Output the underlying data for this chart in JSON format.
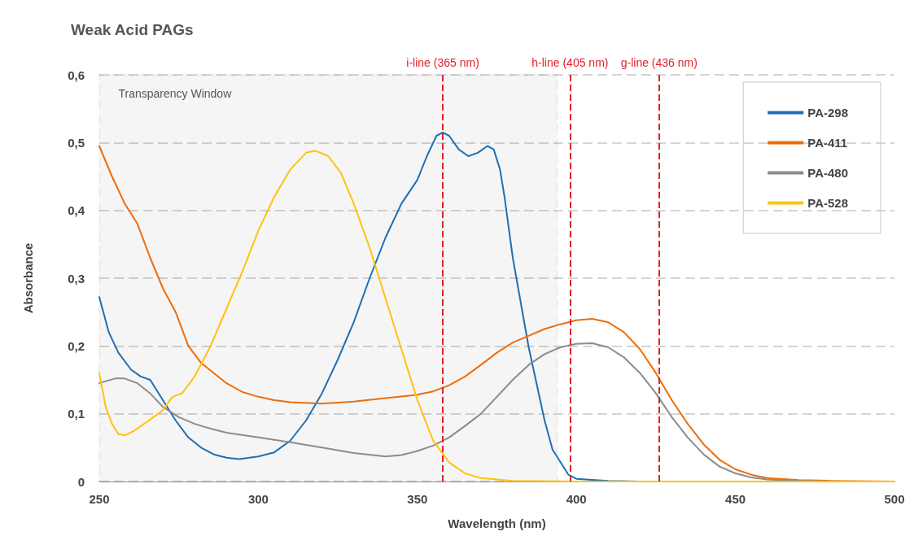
{
  "chart_data": {
    "type": "line",
    "title": "Weak Acid PAGs",
    "xlabel": "Wavelength (nm)",
    "ylabel": "Absorbance",
    "xlim": [
      250,
      500
    ],
    "xticks": [
      250,
      300,
      350,
      400,
      450,
      500
    ],
    "ylim": [
      0,
      0.6
    ],
    "yticks": [
      0,
      {
        "value": 0.1,
        "label": "0,1"
      },
      {
        "value": 0.2,
        "label": "0,2"
      },
      {
        "value": 0.3,
        "label": "0,3"
      },
      {
        "value": 0.4,
        "label": "0,4"
      },
      {
        "value": 0.5,
        "label": "0,5"
      },
      {
        "value": 0.6,
        "label": "0,6"
      }
    ],
    "grid": "y",
    "legend": "top right",
    "marker": "none",
    "line_style": "solid",
    "series": [
      {
        "name": "PA-298",
        "color": "#1f6fb5",
        "x": [
          250,
          253,
          256,
          260,
          263,
          266,
          270,
          274,
          278,
          282,
          286,
          290,
          294,
          300,
          305,
          310,
          315,
          320,
          325,
          330,
          335,
          340,
          345,
          350,
          353,
          356,
          358,
          360,
          363,
          366,
          369,
          372,
          374,
          376,
          377.4,
          380,
          385,
          390,
          392.5,
          397.5,
          400,
          410,
          420,
          500
        ],
        "values": [
          0.272,
          0.22,
          0.19,
          0.165,
          0.155,
          0.15,
          0.12,
          0.09,
          0.065,
          0.05,
          0.04,
          0.035,
          0.033,
          0.037,
          0.043,
          0.06,
          0.09,
          0.13,
          0.18,
          0.235,
          0.3,
          0.36,
          0.41,
          0.445,
          0.48,
          0.51,
          0.515,
          0.51,
          0.49,
          0.48,
          0.485,
          0.495,
          0.49,
          0.46,
          0.42,
          0.33,
          0.198,
          0.09,
          0.047,
          0.01,
          0.004,
          0.001,
          0,
          0
        ]
      },
      {
        "name": "PA-411",
        "color": "#ed6d0a",
        "x": [
          250,
          254,
          258,
          262,
          266,
          270,
          274,
          278,
          282,
          286,
          290,
          295,
          300,
          305,
          310,
          320,
          330,
          340,
          350,
          355,
          360,
          365,
          370,
          375,
          380,
          385,
          390,
          395,
          400,
          405,
          410,
          415,
          420,
          425,
          430,
          435,
          440,
          445,
          450,
          455,
          460,
          470,
          480,
          500
        ],
        "values": [
          0.495,
          0.45,
          0.41,
          0.38,
          0.33,
          0.285,
          0.25,
          0.2,
          0.175,
          0.16,
          0.145,
          0.132,
          0.125,
          0.12,
          0.117,
          0.115,
          0.118,
          0.123,
          0.128,
          0.133,
          0.142,
          0.155,
          0.172,
          0.19,
          0.205,
          0.215,
          0.225,
          0.232,
          0.238,
          0.24,
          0.235,
          0.22,
          0.195,
          0.16,
          0.12,
          0.085,
          0.055,
          0.032,
          0.018,
          0.01,
          0.005,
          0.002,
          0.001,
          0
        ]
      },
      {
        "name": "PA-480",
        "color": "#8c8c8c",
        "x": [
          250,
          255,
          258,
          262,
          266,
          270,
          275,
          280,
          285,
          290,
          300,
          310,
          320,
          330,
          340,
          345,
          350,
          355,
          360,
          365,
          370,
          375,
          380,
          385,
          390,
          395,
          400,
          405,
          410,
          415,
          420,
          425,
          430,
          435,
          440,
          445,
          450,
          455,
          460,
          470,
          480,
          500
        ],
        "values": [
          0.145,
          0.152,
          0.152,
          0.145,
          0.13,
          0.11,
          0.095,
          0.085,
          0.078,
          0.072,
          0.065,
          0.058,
          0.05,
          0.042,
          0.037,
          0.039,
          0.045,
          0.053,
          0.065,
          0.082,
          0.1,
          0.125,
          0.15,
          0.172,
          0.188,
          0.198,
          0.203,
          0.204,
          0.198,
          0.183,
          0.16,
          0.13,
          0.095,
          0.065,
          0.04,
          0.022,
          0.012,
          0.006,
          0.003,
          0.001,
          0,
          0
        ]
      },
      {
        "name": "PA-528",
        "color": "#ffc20e",
        "x": [
          250,
          252,
          254,
          256,
          258,
          261,
          265,
          270,
          273,
          276,
          280,
          285,
          290,
          295,
          300,
          305,
          310,
          315,
          318,
          322,
          326,
          330,
          335,
          340,
          345,
          350,
          355,
          360,
          365,
          370,
          380,
          400,
          500
        ],
        "values": [
          0.16,
          0.11,
          0.085,
          0.07,
          0.068,
          0.075,
          0.088,
          0.105,
          0.125,
          0.13,
          0.155,
          0.2,
          0.255,
          0.31,
          0.37,
          0.42,
          0.46,
          0.485,
          0.488,
          0.48,
          0.455,
          0.41,
          0.345,
          0.27,
          0.195,
          0.12,
          0.06,
          0.028,
          0.012,
          0.005,
          0.001,
          0,
          0
        ]
      }
    ],
    "ref_lines": [
      {
        "axis": "x",
        "value": 358,
        "label": "i-line (365 nm)",
        "color": "#e3202a",
        "line_style": "dashed"
      },
      {
        "axis": "x",
        "value": 398,
        "label": "h-line (405 nm)",
        "color": "#e3202a",
        "line_style": "dashed"
      },
      {
        "axis": "x",
        "value": 426,
        "label": "g-line (436 nm)",
        "color": "#e3202a",
        "line_style": "dashed"
      }
    ],
    "bands": [
      {
        "axis": "x",
        "from": 250,
        "to": 394,
        "label": "Transparency Window",
        "color": "#000000"
      }
    ]
  }
}
